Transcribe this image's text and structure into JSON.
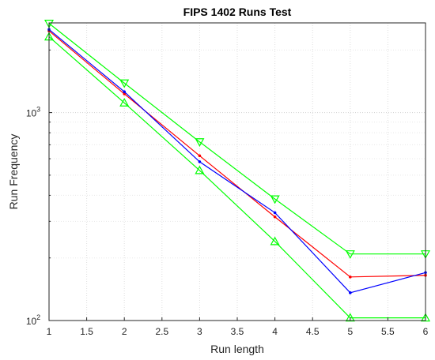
{
  "chart_data": {
    "type": "line",
    "title": "FIPS 1402 Runs Test",
    "xlabel": "Run length",
    "ylabel": "Run Frequency",
    "xlim": [
      1,
      6
    ],
    "ylim": [
      100,
      2700
    ],
    "yscale": "log",
    "grid": true,
    "x_ticks": [
      1,
      1.5,
      2,
      2.5,
      3,
      3.5,
      4,
      4.5,
      5,
      5.5,
      6
    ],
    "x_tick_labels": [
      "1",
      "1.5",
      "2",
      "2.5",
      "3",
      "3.5",
      "4",
      "4.5",
      "5",
      "5.5",
      "6"
    ],
    "y_major_ticks": [
      100,
      1000
    ],
    "y_major_tick_labels": [
      {
        "base": "10",
        "exp": "2"
      },
      {
        "base": "10",
        "exp": "3"
      }
    ],
    "y_minor_ticks": [
      200,
      300,
      400,
      500,
      600,
      700,
      800,
      900,
      2000
    ],
    "x": [
      1,
      2,
      3,
      4,
      5,
      6
    ],
    "series": [
      {
        "color": "#ff0000",
        "marker": "dot",
        "values": [
          2470,
          1230,
          620,
          315,
          162,
          165
        ]
      },
      {
        "color": "#0000ff",
        "marker": "dot",
        "values": [
          2510,
          1260,
          580,
          330,
          136,
          170
        ]
      },
      {
        "color": "#00ff00",
        "marker": "triangle-down",
        "values": [
          2685,
          1386,
          723,
          384,
          209,
          209
        ]
      },
      {
        "color": "#00ff00",
        "marker": "triangle-up",
        "values": [
          2315,
          1114,
          527,
          240,
          103,
          103
        ]
      }
    ]
  }
}
